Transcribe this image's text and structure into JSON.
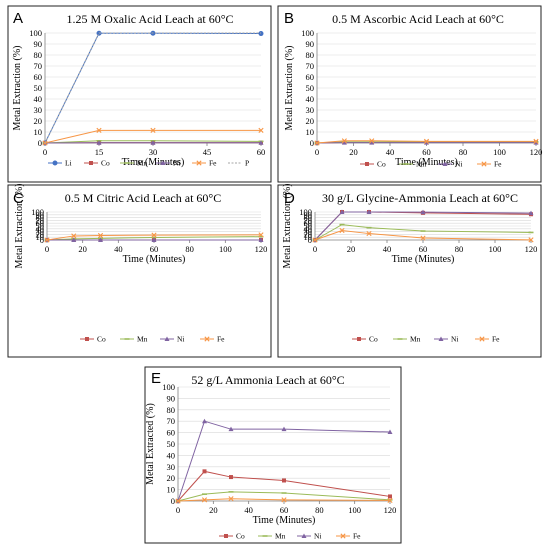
{
  "colors": {
    "Li": "#4472c4",
    "Co": "#c0504d",
    "Mn": "#9bbb59",
    "Ni": "#8064a2",
    "Fe": "#f79646",
    "P": "#a6a6a6"
  },
  "chart_data": [
    {
      "panel": "A",
      "type": "line",
      "title": "1.25 M Oxalic Acid Leach at 60°C",
      "xlabel": "Time (Minutes)",
      "ylabel": "Metal Extraction (%)",
      "xlim": [
        0,
        60
      ],
      "xticks": [
        0,
        15,
        30,
        45,
        60
      ],
      "ylim": [
        0,
        100
      ],
      "yticks": [
        0,
        10,
        20,
        30,
        40,
        50,
        60,
        70,
        80,
        90,
        100
      ],
      "grid": true,
      "legend": "bottom",
      "series": [
        {
          "name": "Li",
          "x": [
            0,
            15,
            30,
            60
          ],
          "values": [
            0,
            99.8,
            99.8,
            99.5
          ]
        },
        {
          "name": "Co",
          "x": [
            0,
            15,
            30,
            60
          ],
          "values": [
            0,
            0.3,
            0.3,
            0.3
          ]
        },
        {
          "name": "Mn",
          "x": [
            0,
            15,
            30,
            60
          ],
          "values": [
            0,
            2,
            2,
            1.5
          ]
        },
        {
          "name": "Ni",
          "x": [
            0,
            15,
            30,
            60
          ],
          "values": [
            0,
            0.2,
            0.2,
            0.2
          ]
        },
        {
          "name": "Fe",
          "x": [
            0,
            15,
            30,
            60
          ],
          "values": [
            0,
            11.5,
            11.5,
            11.5
          ]
        },
        {
          "name": "P",
          "x": [
            0,
            15,
            30,
            60
          ],
          "values": [
            0,
            100,
            100,
            100
          ]
        }
      ]
    },
    {
      "panel": "B",
      "type": "line",
      "title": "0.5 M Ascorbic Acid Leach at 60°C",
      "xlabel": "Time (Minutes)",
      "ylabel": "Metal Extraction (%)",
      "xlim": [
        0,
        120
      ],
      "xticks": [
        0,
        20,
        40,
        60,
        80,
        100,
        120
      ],
      "ylim": [
        0,
        100
      ],
      "yticks": [
        0,
        10,
        20,
        30,
        40,
        50,
        60,
        70,
        80,
        90,
        100
      ],
      "grid": true,
      "legend": "bottom",
      "series": [
        {
          "name": "Co",
          "x": [
            0,
            15,
            30,
            60,
            120
          ],
          "values": [
            0,
            0.5,
            0.5,
            0.5,
            0.5
          ]
        },
        {
          "name": "Mn",
          "x": [
            0,
            15,
            30,
            60,
            120
          ],
          "values": [
            0,
            1,
            1,
            1,
            1
          ]
        },
        {
          "name": "Ni",
          "x": [
            0,
            15,
            30,
            60,
            120
          ],
          "values": [
            0,
            0.3,
            0.3,
            0.3,
            0.3
          ]
        },
        {
          "name": "Fe",
          "x": [
            0,
            15,
            30,
            60,
            120
          ],
          "values": [
            0,
            2,
            2,
            1.5,
            1.5
          ]
        }
      ]
    },
    {
      "panel": "C",
      "type": "line",
      "title": "0.5 M Citric Acid Leach at 60°C",
      "xlabel": "Time (Minutes)",
      "ylabel": "Metal Extraction (%)",
      "xlim": [
        0,
        120
      ],
      "xticks": [
        0,
        20,
        40,
        60,
        80,
        100,
        120
      ],
      "ylim": [
        0,
        100
      ],
      "yticks": [
        0,
        10,
        20,
        30,
        40,
        50,
        60,
        70,
        80,
        90,
        100
      ],
      "grid": true,
      "legend": "bottom",
      "series": [
        {
          "name": "Co",
          "x": [
            0,
            15,
            30,
            60,
            120
          ],
          "values": [
            0,
            0.2,
            0.2,
            0.2,
            0.2
          ]
        },
        {
          "name": "Mn",
          "x": [
            0,
            15,
            30,
            60,
            120
          ],
          "values": [
            0,
            4,
            6,
            9,
            12
          ]
        },
        {
          "name": "Ni",
          "x": [
            0,
            15,
            30,
            60,
            120
          ],
          "values": [
            0,
            0.1,
            0.1,
            0.1,
            0.1
          ]
        },
        {
          "name": "Fe",
          "x": [
            0,
            15,
            30,
            60,
            120
          ],
          "values": [
            0,
            14.5,
            16,
            17.5,
            18.5
          ]
        }
      ]
    },
    {
      "panel": "D",
      "type": "line",
      "title": "30 g/L Glycine-Ammonia Leach at 60°C",
      "xlabel": "Time (Minutes)",
      "ylabel": "Metal Extraction (%)",
      "xlim": [
        0,
        120
      ],
      "xticks": [
        0,
        20,
        40,
        60,
        80,
        100,
        120
      ],
      "ylim": [
        0,
        100
      ],
      "yticks": [
        0,
        10,
        20,
        30,
        40,
        50,
        60,
        70,
        80,
        90,
        100
      ],
      "grid": true,
      "legend": "bottom",
      "series": [
        {
          "name": "Co",
          "x": [
            0,
            15,
            30,
            60,
            120
          ],
          "values": [
            0,
            100,
            100,
            97,
            92
          ]
        },
        {
          "name": "Mn",
          "x": [
            0,
            15,
            30,
            60,
            120
          ],
          "values": [
            0,
            55,
            44,
            32,
            27
          ]
        },
        {
          "name": "Ni",
          "x": [
            0,
            15,
            30,
            60,
            120
          ],
          "values": [
            0,
            100,
            100,
            99.5,
            96
          ]
        },
        {
          "name": "Fe",
          "x": [
            0,
            15,
            30,
            60,
            120
          ],
          "values": [
            0,
            34,
            23,
            7,
            0.5
          ]
        }
      ]
    },
    {
      "panel": "E",
      "type": "line",
      "title": "52 g/L Ammonia Leach at 60°C",
      "xlabel": "Time (Minutes)",
      "ylabel": "Metal Extracted (%)",
      "xlim": [
        0,
        120
      ],
      "xticks": [
        0,
        20,
        40,
        60,
        80,
        100,
        120
      ],
      "ylim": [
        0,
        100
      ],
      "yticks": [
        0,
        10,
        20,
        30,
        40,
        50,
        60,
        70,
        80,
        90,
        100
      ],
      "grid": true,
      "legend": "bottom",
      "series": [
        {
          "name": "Co",
          "x": [
            0,
            15,
            30,
            60,
            120
          ],
          "values": [
            0,
            26,
            21,
            18,
            4
          ]
        },
        {
          "name": "Mn",
          "x": [
            0,
            15,
            30,
            60,
            120
          ],
          "values": [
            0,
            6,
            8,
            7,
            1
          ]
        },
        {
          "name": "Ni",
          "x": [
            0,
            15,
            30,
            60,
            120
          ],
          "values": [
            0,
            70,
            63,
            63,
            60.5
          ]
        },
        {
          "name": "Fe",
          "x": [
            0,
            15,
            30,
            60,
            120
          ],
          "values": [
            0,
            1,
            2,
            1,
            0.5
          ]
        }
      ]
    }
  ]
}
